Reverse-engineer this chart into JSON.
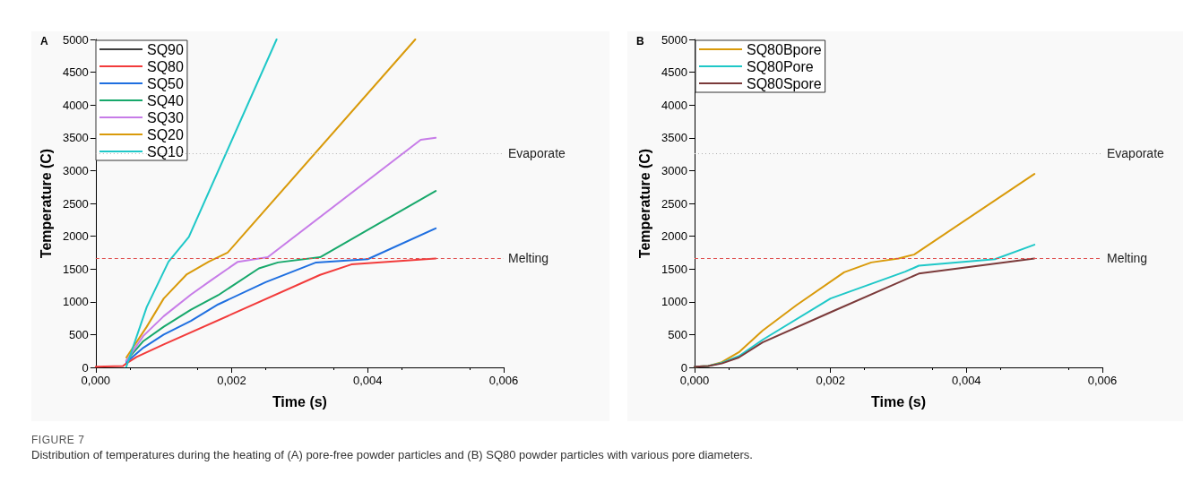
{
  "chart_data": [
    {
      "type": "line",
      "title": "A",
      "xlabel": "Time (s)",
      "ylabel": "Temperature (C)",
      "legend": "top left",
      "grid": false,
      "marker": "none",
      "xlim": [
        0,
        0.006
      ],
      "xticks": [
        {
          "value": 0,
          "label": "0,000"
        },
        {
          "value": 0.002,
          "label": "0,002"
        },
        {
          "value": 0.004,
          "label": "0,004"
        },
        {
          "value": 0.006,
          "label": "0,006"
        }
      ],
      "ylim": [
        0,
        5000
      ],
      "yticks": [
        0,
        500,
        1000,
        1500,
        2000,
        2500,
        3000,
        3500,
        4000,
        4500,
        5000
      ],
      "ref_lines": [
        {
          "axis": "y",
          "value": 3260,
          "label": "Evaporate",
          "color": "#b0b0b0",
          "line_style": "dotted"
        },
        {
          "axis": "y",
          "value": 1660,
          "label": "Melting",
          "color": "#e05050",
          "line_style": "dashed"
        }
      ],
      "series": [
        {
          "name": "SQ90",
          "color": "#404040",
          "type": "line"
        },
        {
          "name": "SQ80",
          "color": "#f23b3b",
          "x": [
            0,
            0.0004,
            0.00045,
            0.0006,
            0.001,
            0.002,
            0.0033,
            0.00376,
            0.005
          ],
          "values": [
            10,
            20,
            60,
            160,
            350,
            810,
            1410,
            1570,
            1660
          ]
        },
        {
          "name": "SQ50",
          "color": "#1f6fe0",
          "x": [
            0.00045,
            0.0007,
            0.001,
            0.0014,
            0.0018,
            0.0025,
            0.00324,
            0.004,
            0.005
          ],
          "values": [
            80,
            300,
            500,
            710,
            960,
            1300,
            1600,
            1650,
            2120
          ]
        },
        {
          "name": "SQ40",
          "color": "#17a86b",
          "x": [
            0.00045,
            0.0007,
            0.001,
            0.0014,
            0.0018,
            0.0024,
            0.00268,
            0.0033,
            0.005
          ],
          "values": [
            100,
            400,
            620,
            880,
            1100,
            1510,
            1600,
            1680,
            2690
          ]
        },
        {
          "name": "SQ30",
          "color": "#c77ce8",
          "x": [
            0.00045,
            0.0007,
            0.001,
            0.0014,
            0.0017,
            0.00209,
            0.00253,
            0.00478,
            0.005
          ],
          "values": [
            100,
            480,
            780,
            1110,
            1330,
            1610,
            1680,
            3470,
            3500
          ]
        },
        {
          "name": "SQ20",
          "color": "#d99a0a",
          "x": [
            0.00045,
            0.00075,
            0.001,
            0.00134,
            0.00166,
            0.00194,
            0.0047
          ],
          "values": [
            150,
            620,
            1050,
            1420,
            1610,
            1750,
            5000
          ]
        },
        {
          "name": "SQ10",
          "color": "#1fc8c8",
          "x": [
            0.00045,
            0.00075,
            0.00107,
            0.00137,
            0.00266
          ],
          "values": [
            10,
            920,
            1610,
            1990,
            5000
          ]
        }
      ],
      "annotations": [
        "FIGURE 7",
        "Distribution of temperatures during the heating of (A) pore-free powder particles and (B) SQ80 powder particles with various pore diameters."
      ]
    },
    {
      "type": "line",
      "title": "B",
      "xlabel": "Time (s)",
      "ylabel": "Temperature (C)",
      "legend": "top left",
      "grid": false,
      "marker": "none",
      "xlim": [
        0,
        0.006
      ],
      "xticks": [
        {
          "value": 0,
          "label": "0,000"
        },
        {
          "value": 0.002,
          "label": "0,002"
        },
        {
          "value": 0.004,
          "label": "0,004"
        },
        {
          "value": 0.006,
          "label": "0,006"
        }
      ],
      "ylim": [
        0,
        5000
      ],
      "yticks": [
        0,
        500,
        1000,
        1500,
        2000,
        2500,
        3000,
        3500,
        4000,
        4500,
        5000
      ],
      "ref_lines": [
        {
          "axis": "y",
          "value": 3260,
          "label": "Evaporate",
          "color": "#b0b0b0",
          "line_style": "dotted"
        },
        {
          "axis": "y",
          "value": 1660,
          "label": "Melting",
          "color": "#e05050",
          "line_style": "dashed"
        }
      ],
      "series": [
        {
          "name": "SQ80Bpore",
          "color": "#d99a0a",
          "x": [
            0,
            0.0002,
            0.0004,
            0.00065,
            0.001,
            0.0015,
            0.0022,
            0.0026,
            0.003,
            0.00323,
            0.005
          ],
          "values": [
            10,
            20,
            80,
            230,
            560,
            950,
            1450,
            1600,
            1660,
            1720,
            2950
          ]
        },
        {
          "name": "SQ80Pore",
          "color": "#1fc8c8",
          "x": [
            0,
            0.0002,
            0.0004,
            0.00065,
            0.001,
            0.002,
            0.0031,
            0.0033,
            0.00442,
            0.005
          ],
          "values": [
            10,
            20,
            70,
            170,
            420,
            1050,
            1460,
            1550,
            1650,
            1870
          ]
        },
        {
          "name": "SQ80Spore",
          "color": "#7b3a3a",
          "x": [
            0,
            0.0002,
            0.0004,
            0.00065,
            0.001,
            0.002,
            0.0033,
            0.005
          ],
          "values": [
            10,
            20,
            60,
            150,
            380,
            840,
            1430,
            1660
          ]
        }
      ]
    }
  ]
}
